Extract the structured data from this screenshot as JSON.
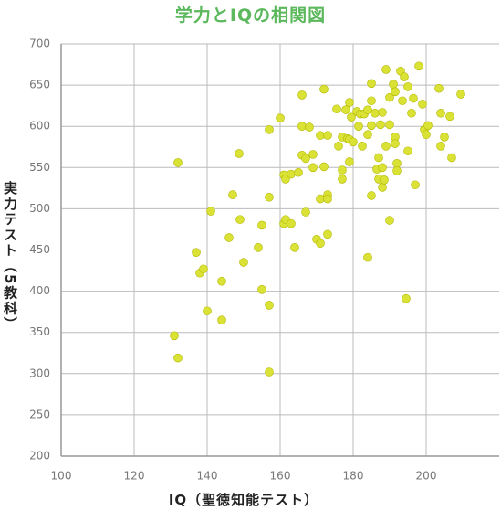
{
  "chart_data": {
    "type": "scatter",
    "title": "学力とIQの相関図",
    "x_label": "IQ（聖徳知能テスト）",
    "y_label": "実力テスト（5教科）",
    "color": "#dbe236",
    "edge_color": "#b3b800",
    "grid": true,
    "xlim": [
      100,
      220
    ],
    "xticks": [
      100,
      120,
      140,
      160,
      180,
      200
    ],
    "ylim": [
      200,
      700
    ],
    "yticks": [
      200,
      250,
      300,
      350,
      400,
      450,
      500,
      550,
      600,
      650,
      700
    ],
    "x": [
      132,
      148.75,
      131,
      132,
      137,
      138,
      139,
      140,
      141,
      144,
      144,
      146,
      147,
      149,
      150,
      154,
      155,
      155,
      157,
      157,
      157,
      157,
      160,
      161,
      161.5,
      161,
      161.5,
      163,
      163,
      164,
      165,
      166,
      166,
      166,
      167,
      167,
      168,
      169,
      169,
      170,
      171,
      171,
      171,
      172,
      173,
      172,
      173,
      173,
      173,
      175.5,
      176,
      177,
      177,
      177,
      178,
      178.5,
      179,
      179.5,
      179,
      179,
      180,
      181,
      181.5,
      182,
      182.5,
      183,
      184,
      184,
      184,
      185,
      185,
      185,
      185,
      186,
      186.5,
      187,
      187,
      187.5,
      188,
      188.5,
      188,
      189,
      189,
      190,
      190,
      190,
      191,
      191.5,
      191.5,
      191.5,
      192,
      192,
      193,
      193.5,
      194,
      194.5,
      195,
      195,
      196,
      196.5,
      197,
      198,
      199,
      199.5,
      200,
      200.5,
      203.5,
      204,
      204,
      205,
      206.5,
      207,
      209.5,
      188
    ],
    "y": [
      556,
      567,
      346,
      319,
      447,
      422,
      427,
      376,
      497,
      412,
      365,
      465,
      517,
      487,
      435,
      453,
      480,
      402,
      514,
      383,
      302,
      596,
      610,
      541,
      536,
      482,
      487,
      542,
      482,
      453,
      544,
      638,
      600,
      565,
      561,
      496,
      599,
      566,
      550,
      463,
      512,
      458,
      589,
      645,
      589,
      551,
      517,
      512,
      469,
      621,
      576,
      547,
      587,
      536,
      620,
      585,
      629,
      611,
      584,
      557,
      581,
      618,
      600,
      615,
      576,
      615,
      590,
      620,
      441,
      601,
      652,
      631,
      516,
      616,
      548,
      562,
      536,
      602,
      526,
      535,
      617,
      576,
      669,
      602,
      635,
      486,
      651,
      642,
      587,
      579,
      555,
      546,
      667,
      631,
      660,
      391,
      648,
      570,
      616,
      634,
      529,
      673,
      627,
      596,
      590,
      601,
      646,
      616,
      576,
      587,
      612,
      562,
      639,
      550
    ]
  }
}
